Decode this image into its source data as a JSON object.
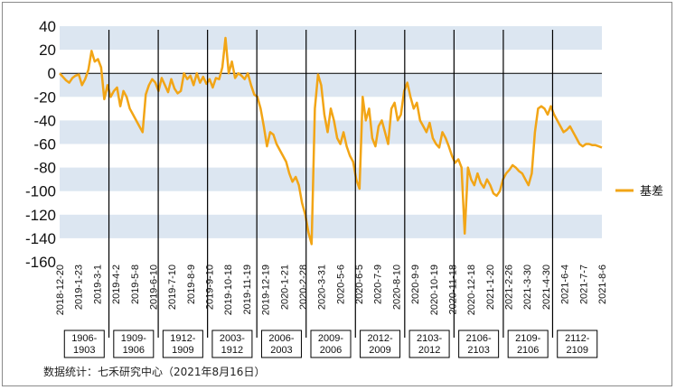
{
  "chart_data": {
    "type": "line",
    "title": "",
    "xlabel": "",
    "ylabel": "",
    "ylim": [
      -160,
      40
    ],
    "yticks": [
      40,
      20,
      0,
      -20,
      -40,
      -60,
      -80,
      -100,
      -120,
      -140,
      -160
    ],
    "grid": "alternating horizontal bands",
    "legend_position": "right",
    "colors": {
      "line": "#F2A516",
      "band": "#DCE6F1",
      "divider": "#000000",
      "zero_line": "#000000"
    },
    "x_tick_labels": [
      "2018-12-20",
      "2019-1-23",
      "2019-3-1",
      "2019-4-2",
      "2019-5-8",
      "2019-6-10",
      "2019-7-10",
      "2019-8-9",
      "2019-9-10",
      "2019-10-18",
      "2019-11-19",
      "2019-12-19",
      "2020-1-21",
      "2020-2-28",
      "2020-3-31",
      "2020-5-6",
      "2020-6-5",
      "2020-7-9",
      "2020-8-10",
      "2020-9-9",
      "2020-10-19",
      "2020-11-18",
      "2020-12-18",
      "2021-1-20",
      "2021-2-26",
      "2021-3-30",
      "2021-4-30",
      "2021-6-4",
      "2021-7-7",
      "2021-8-6"
    ],
    "contracts": [
      "1906-1903",
      "1909-1906",
      "1912-1909",
      "2003-1912",
      "2006-2003",
      "2009-2006",
      "2012-2009",
      "2103-2012",
      "2106-2103",
      "2109-2106",
      "2112-2109"
    ],
    "contract_labels": [
      [
        "1906-",
        "1903"
      ],
      [
        "1909-",
        "1906"
      ],
      [
        "1912-",
        "1909"
      ],
      [
        "2003-",
        "1912"
      ],
      [
        "2006-",
        "2003"
      ],
      [
        "2009-",
        "2006"
      ],
      [
        "2012-",
        "2009"
      ],
      [
        "2103-",
        "2012"
      ],
      [
        "2106-",
        "2103"
      ],
      [
        "2109-",
        "2106"
      ],
      [
        "2112-",
        "2109"
      ]
    ],
    "series": [
      {
        "name": "基差",
        "x": [
          0,
          1,
          2,
          3,
          4,
          5,
          6,
          7,
          8,
          9,
          10,
          11,
          12,
          13,
          14,
          15,
          16,
          17,
          18,
          19,
          20,
          21,
          22,
          23,
          24,
          25,
          26,
          27,
          28,
          29,
          30,
          31,
          32,
          33,
          34,
          35,
          36,
          37,
          38,
          39,
          40,
          41,
          42,
          43,
          44,
          45,
          46,
          47,
          48,
          49,
          50,
          51,
          52,
          53,
          54,
          55,
          56,
          57,
          58,
          59,
          60,
          61,
          62,
          63,
          64,
          65,
          66,
          67,
          68,
          69,
          70,
          71,
          72,
          73,
          74,
          75,
          76,
          77,
          78,
          79,
          80,
          81,
          82,
          83,
          84,
          85,
          86,
          87,
          88,
          89,
          90,
          91,
          92,
          93,
          94,
          95,
          96,
          97,
          98,
          99,
          100,
          101,
          102,
          103,
          104,
          105,
          106,
          107,
          108,
          109,
          110,
          111,
          112,
          113,
          114,
          115,
          116,
          117,
          118,
          119,
          120,
          121,
          122,
          123,
          124,
          125,
          126,
          127,
          128,
          129,
          130,
          131,
          132,
          133,
          134,
          135,
          136,
          137,
          138,
          139,
          140,
          141,
          142,
          143,
          144,
          145,
          146,
          147,
          148,
          149,
          150,
          151,
          152,
          153,
          154,
          155,
          156,
          157,
          158,
          159,
          160,
          161,
          162,
          163,
          164,
          165,
          166,
          167,
          168,
          169,
          170
        ],
        "values": [
          0,
          -3,
          -6,
          -8,
          -4,
          -2,
          -1,
          -10,
          -5,
          3,
          19,
          10,
          12,
          5,
          -22,
          -10,
          -20,
          -15,
          -12,
          -28,
          -15,
          -20,
          -30,
          -35,
          -40,
          -45,
          -50,
          -18,
          -10,
          -5,
          -8,
          -15,
          -4,
          -10,
          -16,
          -5,
          -13,
          -17,
          -15,
          0,
          -5,
          -2,
          -10,
          0,
          -8,
          -3,
          -9,
          -5,
          -12,
          -4,
          -5,
          5,
          30,
          0,
          10,
          -4,
          0,
          -2,
          -5,
          0,
          -10,
          -18,
          -20,
          -30,
          -45,
          -62,
          -50,
          -52,
          -60,
          -65,
          -70,
          -75,
          -85,
          -92,
          -88,
          -95,
          -110,
          -120,
          -135,
          -145,
          -30,
          -1,
          -10,
          -35,
          -50,
          -30,
          -40,
          -55,
          -60,
          -50,
          -62,
          -70,
          -75,
          -90,
          -98,
          -20,
          -40,
          -30,
          -55,
          -62,
          -45,
          -40,
          -50,
          -60,
          -30,
          -25,
          -40,
          -35,
          -15,
          -8,
          -20,
          -30,
          -25,
          -40,
          -45,
          -50,
          -42,
          -55,
          -60,
          -63,
          -50,
          -55,
          -62,
          -70,
          -76,
          -73,
          -80,
          -136,
          -80,
          -90,
          -95,
          -85,
          -93,
          -97,
          -90,
          -95,
          -102,
          -104,
          -100,
          -90,
          -85,
          -82,
          -78,
          -80,
          -83,
          -85,
          -90,
          -95,
          -85,
          -50,
          -30,
          -28,
          -30,
          -35,
          -28,
          -35,
          -40,
          -45,
          -50,
          -48,
          -45,
          -50,
          -55,
          -60,
          -62,
          -60,
          -60,
          -61,
          -61,
          -62,
          -63
        ]
      }
    ]
  },
  "legend": {
    "label": "基差"
  },
  "source": "数据统计：七禾研究中心（2021年8月16日）"
}
